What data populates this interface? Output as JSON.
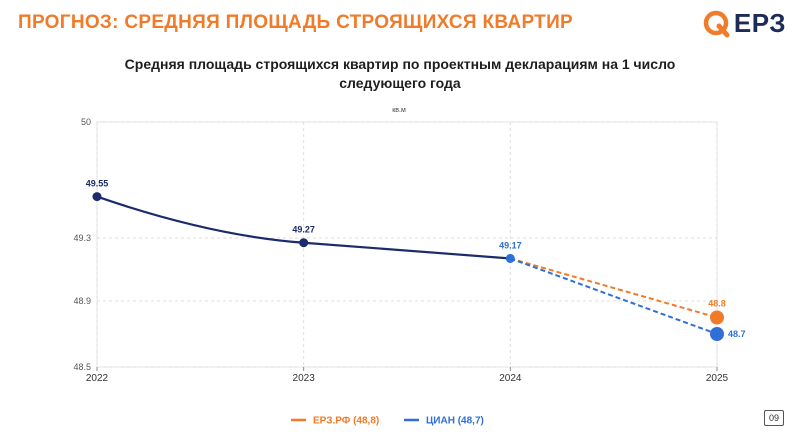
{
  "header": {
    "title": "ПРОГНОЗ: СРЕДНЯЯ ПЛОЩАДЬ СТРОЯЩИХСЯ КВАРТИР",
    "logo_text": "ЕРЗ",
    "accent_color": "#f07b2a",
    "brand_color": "#1c2b57"
  },
  "page_number": "09",
  "chart_data": {
    "type": "line",
    "title": "Средняя площадь строящихся квартир по проектным декларациям на 1 число следующего года",
    "ylabel": "кв.м",
    "xlabel": "",
    "x": [
      "2022",
      "2023",
      "2024",
      "2025"
    ],
    "ylim": [
      48.5,
      50
    ],
    "yticks": [
      "50",
      "49.3",
      "48.9",
      "48.5"
    ],
    "ytick_values": [
      50,
      49.3,
      48.9,
      48.5
    ],
    "grid": true,
    "legend_position": "bottom",
    "history": {
      "x": [
        "2022",
        "2023",
        "2024"
      ],
      "values": [
        49.55,
        49.27,
        49.17
      ],
      "labels": [
        "49.55",
        "49.27",
        "49.17"
      ],
      "color": "#1c2b6b"
    },
    "series": [
      {
        "name": "ЕРЗ.РФ (48,8)",
        "x": [
          "2024",
          "2025"
        ],
        "values": [
          49.17,
          48.8
        ],
        "end_label": "48.8",
        "color": "#f07b2a"
      },
      {
        "name": "ЦИАН (48,7)",
        "x": [
          "2024",
          "2025"
        ],
        "values": [
          49.17,
          48.7
        ],
        "end_label": "48.7",
        "color": "#2f6fd6"
      }
    ]
  }
}
